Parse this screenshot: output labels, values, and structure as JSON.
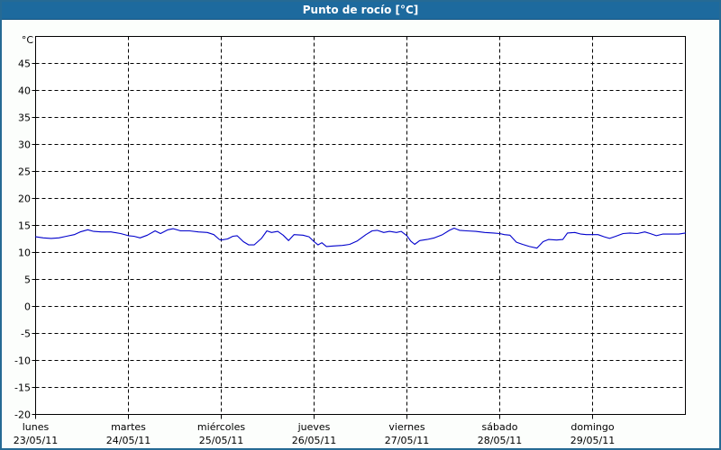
{
  "window": {
    "title": "Punto de rocío [°C]"
  },
  "colors": {
    "titlebar_bg": "#1d6a9e",
    "frame_border": "#266a94",
    "background": "#fcfefc",
    "plot_background": "#ffffff",
    "plot_border": "#000000",
    "grid": "#000000",
    "line": "#0000cc",
    "text": "#000000"
  },
  "chart_data": {
    "type": "line",
    "title": "Punto de rocío [°C]",
    "ylabel": "°C",
    "xlabel": "",
    "ylim": [
      -20,
      50
    ],
    "y_tick_step": 5,
    "y_labeled_ticks": [
      45,
      40,
      35,
      30,
      25,
      20,
      15,
      10,
      5,
      0,
      -5,
      -10,
      -15,
      -20
    ],
    "grid": "dashed",
    "legend_position": "none",
    "x_axis": {
      "hours_span": 168,
      "days": [
        {
          "name": "lunes",
          "date": "23/05/11"
        },
        {
          "name": "martes",
          "date": "24/05/11"
        },
        {
          "name": "miércoles",
          "date": "25/05/11"
        },
        {
          "name": "jueves",
          "date": "26/05/11"
        },
        {
          "name": "viernes",
          "date": "27/05/11"
        },
        {
          "name": "sábado",
          "date": "28/05/11"
        },
        {
          "name": "domingo",
          "date": "29/05/11"
        }
      ]
    },
    "series": [
      {
        "name": "Punto de rocío",
        "color": "#0000cc",
        "points_hours_degc": [
          [
            0,
            12.9
          ],
          [
            2,
            12.7
          ],
          [
            4,
            12.6
          ],
          [
            6,
            12.7
          ],
          [
            8,
            13.0
          ],
          [
            10,
            13.3
          ],
          [
            11.5,
            13.8
          ],
          [
            13.5,
            14.2
          ],
          [
            15,
            13.9
          ],
          [
            17,
            13.8
          ],
          [
            19.5,
            13.8
          ],
          [
            22,
            13.5
          ],
          [
            24,
            13.1
          ],
          [
            25.4,
            13.0
          ],
          [
            27,
            12.7
          ],
          [
            28.9,
            13.2
          ],
          [
            30.9,
            14.0
          ],
          [
            32.3,
            13.5
          ],
          [
            34.2,
            14.2
          ],
          [
            35.6,
            14.4
          ],
          [
            37.5,
            14.0
          ],
          [
            39.8,
            14.0
          ],
          [
            42.1,
            13.8
          ],
          [
            44.4,
            13.7
          ],
          [
            46.1,
            13.3
          ],
          [
            47.5,
            12.4
          ],
          [
            48,
            12.3
          ],
          [
            49.6,
            12.5
          ],
          [
            51,
            13.0
          ],
          [
            52.1,
            13.1
          ],
          [
            53.7,
            12.0
          ],
          [
            55.1,
            11.4
          ],
          [
            56.5,
            11.4
          ],
          [
            58.4,
            12.6
          ],
          [
            59.8,
            14.0
          ],
          [
            61,
            13.7
          ],
          [
            62.6,
            13.9
          ],
          [
            64,
            13.2
          ],
          [
            65.4,
            12.2
          ],
          [
            66.8,
            13.3
          ],
          [
            69.1,
            13.2
          ],
          [
            70.7,
            12.9
          ],
          [
            72,
            12.0
          ],
          [
            73,
            11.4
          ],
          [
            74,
            11.8
          ],
          [
            75.2,
            11.1
          ],
          [
            77,
            11.2
          ],
          [
            79.3,
            11.3
          ],
          [
            81.2,
            11.5
          ],
          [
            83.1,
            12.1
          ],
          [
            85.4,
            13.3
          ],
          [
            87,
            14.0
          ],
          [
            88.3,
            14.1
          ],
          [
            90,
            13.7
          ],
          [
            91.5,
            13.9
          ],
          [
            93.3,
            13.7
          ],
          [
            94.5,
            13.9
          ],
          [
            96,
            13.1
          ],
          [
            97,
            12.1
          ],
          [
            98,
            11.5
          ],
          [
            99.3,
            12.2
          ],
          [
            101.2,
            12.4
          ],
          [
            103.1,
            12.7
          ],
          [
            105.2,
            13.3
          ],
          [
            107,
            14.1
          ],
          [
            108.2,
            14.5
          ],
          [
            109.6,
            14.1
          ],
          [
            111.4,
            14.0
          ],
          [
            113.8,
            13.9
          ],
          [
            116.1,
            13.7
          ],
          [
            118.4,
            13.6
          ],
          [
            120,
            13.5
          ],
          [
            121.2,
            13.3
          ],
          [
            122.6,
            13.2
          ],
          [
            124.3,
            11.9
          ],
          [
            125.9,
            11.5
          ],
          [
            127.7,
            11.1
          ],
          [
            129.6,
            10.8
          ],
          [
            131.2,
            12.0
          ],
          [
            132.6,
            12.4
          ],
          [
            134.7,
            12.3
          ],
          [
            136.3,
            12.4
          ],
          [
            137.5,
            13.6
          ],
          [
            139.4,
            13.7
          ],
          [
            141,
            13.4
          ],
          [
            142.4,
            13.3
          ],
          [
            144,
            13.3
          ],
          [
            145.4,
            13.3
          ],
          [
            147,
            12.9
          ],
          [
            148.4,
            12.6
          ],
          [
            150,
            13.0
          ],
          [
            151.9,
            13.5
          ],
          [
            153.7,
            13.6
          ],
          [
            155.6,
            13.5
          ],
          [
            157.5,
            13.8
          ],
          [
            158.9,
            13.5
          ],
          [
            160.5,
            13.1
          ],
          [
            162.1,
            13.4
          ],
          [
            164.5,
            13.4
          ],
          [
            166.3,
            13.4
          ],
          [
            168,
            13.6
          ]
        ]
      }
    ]
  }
}
